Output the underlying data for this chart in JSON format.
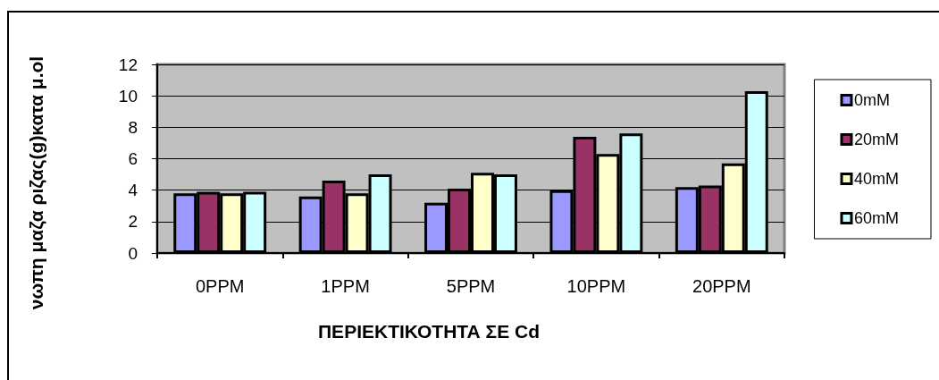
{
  "chart_data": {
    "type": "bar",
    "xlabel": "ΠΕΡΙΕΚΤΙΚΟΤΗΤΑ ΣΕ Cd",
    "ylabel": "νωπη μαζα ριζας(g)κατα μ.ol",
    "categories": [
      "0PPM",
      "1PPM",
      "5PPM",
      "10PPM",
      "20PPM"
    ],
    "series": [
      {
        "name": "0mM",
        "color": "#9999ff",
        "values": [
          3.8,
          3.6,
          3.2,
          4.0,
          4.2
        ]
      },
      {
        "name": "20mM",
        "color": "#993366",
        "values": [
          3.9,
          4.6,
          4.1,
          7.4,
          4.3
        ]
      },
      {
        "name": "40mM",
        "color": "#ffffcc",
        "values": [
          3.8,
          3.8,
          5.1,
          6.3,
          5.7
        ]
      },
      {
        "name": "60mM",
        "color": "#ccffff",
        "values": [
          3.9,
          5.0,
          5.0,
          7.6,
          10.3
        ]
      }
    ],
    "ylim": [
      0,
      12
    ],
    "yticks": [
      0,
      2,
      4,
      6,
      8,
      10,
      12
    ],
    "grid": "y",
    "legend": "right"
  }
}
